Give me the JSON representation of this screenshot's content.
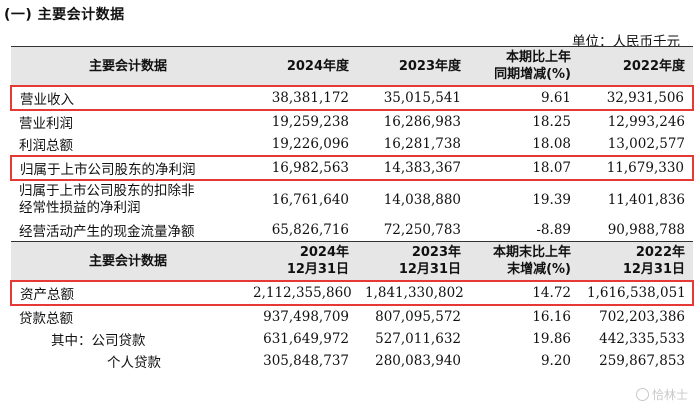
{
  "section_title": "(一) 主要会计数据",
  "unit_label": "单位：人民币千元",
  "header1": [
    "主要会计数据",
    "2024年度",
    "2023年度",
    "本期比上年\n同期增减(%)",
    "2022年度"
  ],
  "section1_rows": [
    {
      "label": "营业收入",
      "v2024": "38,381,172",
      "v2023": "35,015,541",
      "change": "9.61",
      "v2022": "32,931,506",
      "highlight": true
    },
    {
      "label": "营业利润",
      "v2024": "19,259,238",
      "v2023": "16,286,983",
      "change": "18.25",
      "v2022": "12,993,246",
      "highlight": false
    },
    {
      "label": "利润总额",
      "v2024": "19,226,096",
      "v2023": "16,281,738",
      "change": "18.08",
      "v2022": "13,002,577",
      "highlight": false
    },
    {
      "label": "归属于上市公司股东的净利润",
      "v2024": "16,982,563",
      "v2023": "14,383,367",
      "change": "18.07",
      "v2022": "11,679,330",
      "highlight": true
    },
    {
      "label": "归属于上市公司股东的扣除非\n经常性损益的净利润",
      "v2024": "16,761,640",
      "v2023": "14,038,880",
      "change": "19.39",
      "v2022": "11,401,836",
      "highlight": false
    },
    {
      "label": "经营活动产生的现金流量净额",
      "v2024": "65,826,716",
      "v2023": "72,250,783",
      "change": "-8.89",
      "v2022": "90,988,788",
      "highlight": false
    }
  ],
  "header2": [
    "主要会计数据",
    "2024年\n12月31日",
    "2023年\n12月31日",
    "本期末比上年\n末增减(%)",
    "2022年\n12月31日"
  ],
  "section2_rows": [
    {
      "label": "资产总额",
      "v2024": "2,112,355,860",
      "v2023": "1,841,330,802",
      "change": "14.72",
      "v2022": "1,616,538,051",
      "highlight": true,
      "indent": 0
    },
    {
      "label": "贷款总额",
      "v2024": "937,498,709",
      "v2023": "807,095,572",
      "change": "16.16",
      "v2022": "702,203,386",
      "highlight": false,
      "indent": 0
    },
    {
      "label": "其中：公司贷款",
      "v2024": "631,649,972",
      "v2023": "527,011,632",
      "change": "19.86",
      "v2022": "442,335,533",
      "highlight": false,
      "indent": 1
    },
    {
      "label": "个人贷款",
      "v2024": "305,848,737",
      "v2023": "280,083,940",
      "change": "9.20",
      "v2022": "259,867,853",
      "highlight": false,
      "indent": 2
    }
  ],
  "watermark": "恰林士",
  "colors": {
    "highlight_border": "#e53935",
    "header_bg": "#e6e6e6"
  }
}
